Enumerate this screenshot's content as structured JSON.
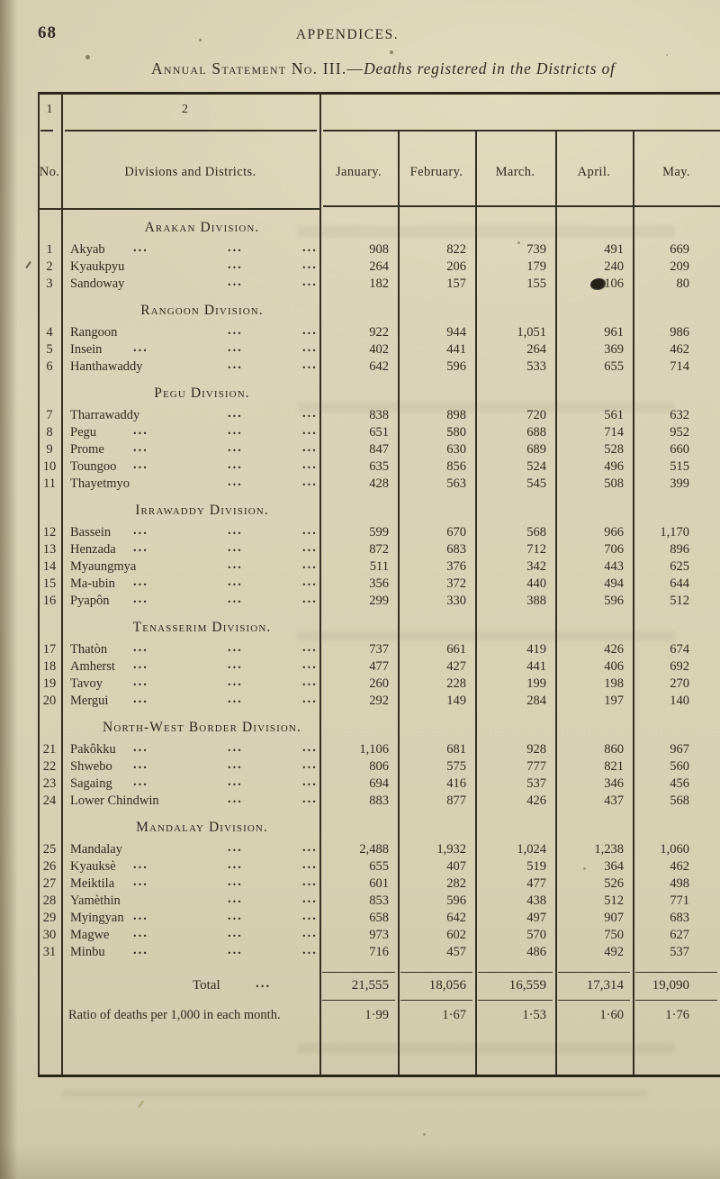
{
  "page": {
    "number": "68",
    "running_head": "APPENDICES."
  },
  "title": {
    "caps": "Annual Statement No. III.—",
    "italic": "Deaths registered in the Districts of"
  },
  "table": {
    "col_numbers": {
      "no": "1",
      "district": "2"
    },
    "headers": {
      "no": "No.",
      "district": "Divisions and Districts.",
      "months": [
        "January.",
        "February.",
        "March.",
        "April.",
        "May."
      ]
    },
    "leader_dots": "...",
    "sections": [
      {
        "division": "Arakan Division.",
        "rows": [
          {
            "no": "1",
            "name": "Akyab",
            "dots": 3,
            "values": [
              "908",
              "822",
              "739",
              "491",
              "669"
            ]
          },
          {
            "no": "2",
            "name": "Kyaukpyu",
            "dots": 2,
            "values": [
              "264",
              "206",
              "179",
              "240",
              "209"
            ]
          },
          {
            "no": "3",
            "name": "Sandoway",
            "dots": 2,
            "values": [
              "182",
              "157",
              "155",
              "106",
              "80"
            ],
            "blot_col": 3
          }
        ]
      },
      {
        "division": "Rangoon Division.",
        "rows": [
          {
            "no": "4",
            "name": "Rangoon",
            "dots": 2,
            "values": [
              "922",
              "944",
              "1,051",
              "961",
              "986"
            ]
          },
          {
            "no": "5",
            "name": "Insein",
            "dots": 3,
            "values": [
              "402",
              "441",
              "264",
              "369",
              "462"
            ]
          },
          {
            "no": "6",
            "name": "Hanthawaddy",
            "dots": 2,
            "values": [
              "642",
              "596",
              "533",
              "655",
              "714"
            ]
          }
        ]
      },
      {
        "division": "Pegu Division.",
        "rows": [
          {
            "no": "7",
            "name": "Tharrawaddy",
            "dots": 2,
            "values": [
              "838",
              "898",
              "720",
              "561",
              "632"
            ]
          },
          {
            "no": "8",
            "name": "Pegu",
            "dots": 3,
            "values": [
              "651",
              "580",
              "688",
              "714",
              "952"
            ]
          },
          {
            "no": "9",
            "name": "Prome",
            "dots": 3,
            "values": [
              "847",
              "630",
              "689",
              "528",
              "660"
            ]
          },
          {
            "no": "10",
            "name": "Toungoo",
            "dots": 3,
            "values": [
              "635",
              "856",
              "524",
              "496",
              "515"
            ]
          },
          {
            "no": "11",
            "name": "Thayetmyo",
            "dots": 2,
            "values": [
              "428",
              "563",
              "545",
              "508",
              "399"
            ]
          }
        ]
      },
      {
        "division": "Irrawaddy Division.",
        "rows": [
          {
            "no": "12",
            "name": "Bassein",
            "dots": 3,
            "values": [
              "599",
              "670",
              "568",
              "966",
              "1,170"
            ]
          },
          {
            "no": "13",
            "name": "Henzada",
            "dots": 3,
            "values": [
              "872",
              "683",
              "712",
              "706",
              "896"
            ]
          },
          {
            "no": "14",
            "name": "Myaungmya",
            "dots": 2,
            "values": [
              "511",
              "376",
              "342",
              "443",
              "625"
            ]
          },
          {
            "no": "15",
            "name": "Ma-ubin",
            "dots": 3,
            "values": [
              "356",
              "372",
              "440",
              "494",
              "644"
            ]
          },
          {
            "no": "16",
            "name": "Pyapôn",
            "dots": 3,
            "values": [
              "299",
              "330",
              "388",
              "596",
              "512"
            ]
          }
        ]
      },
      {
        "division": "Tenasserim Division.",
        "rows": [
          {
            "no": "17",
            "name": "Thatòn",
            "dots": 3,
            "values": [
              "737",
              "661",
              "419",
              "426",
              "674"
            ]
          },
          {
            "no": "18",
            "name": "Amherst",
            "dots": 3,
            "values": [
              "477",
              "427",
              "441",
              "406",
              "692"
            ]
          },
          {
            "no": "19",
            "name": "Tavoy",
            "dots": 3,
            "values": [
              "260",
              "228",
              "199",
              "198",
              "270"
            ]
          },
          {
            "no": "20",
            "name": "Mergui",
            "dots": 3,
            "values": [
              "292",
              "149",
              "284",
              "197",
              "140"
            ]
          }
        ]
      },
      {
        "division": "North-West Border Division.",
        "rows": [
          {
            "no": "21",
            "name": "Pakôkku",
            "dots": 3,
            "values": [
              "1,106",
              "681",
              "928",
              "860",
              "967"
            ]
          },
          {
            "no": "22",
            "name": "Shwebo",
            "dots": 3,
            "values": [
              "806",
              "575",
              "777",
              "821",
              "560"
            ]
          },
          {
            "no": "23",
            "name": "Sagaing",
            "dots": 3,
            "values": [
              "694",
              "416",
              "537",
              "346",
              "456"
            ]
          },
          {
            "no": "24",
            "name": "Lower Chindwin",
            "dots": 2,
            "values": [
              "883",
              "877",
              "426",
              "437",
              "568"
            ]
          }
        ]
      },
      {
        "division": "Mandalay Division.",
        "rows": [
          {
            "no": "25",
            "name": "Mandalay",
            "dots": 2,
            "values": [
              "2,488",
              "1,932",
              "1,024",
              "1,238",
              "1,060"
            ]
          },
          {
            "no": "26",
            "name": "Kyauksè",
            "dots": 3,
            "values": [
              "655",
              "407",
              "519",
              "364",
              "462"
            ]
          },
          {
            "no": "27",
            "name": "Meiktila",
            "dots": 3,
            "values": [
              "601",
              "282",
              "477",
              "526",
              "498"
            ]
          },
          {
            "no": "28",
            "name": "Yamèthin",
            "dots": 2,
            "values": [
              "853",
              "596",
              "438",
              "512",
              "771"
            ]
          },
          {
            "no": "29",
            "name": "Myingyan",
            "dots": 3,
            "values": [
              "658",
              "642",
              "497",
              "907",
              "683"
            ]
          },
          {
            "no": "30",
            "name": "Magwe",
            "dots": 3,
            "values": [
              "973",
              "602",
              "570",
              "750",
              "627"
            ]
          },
          {
            "no": "31",
            "name": "Minbu",
            "dots": 3,
            "values": [
              "716",
              "457",
              "486",
              "492",
              "537"
            ]
          }
        ]
      }
    ],
    "total": {
      "label": "Total",
      "values": [
        "21,555",
        "18,056",
        "16,559",
        "17,314",
        "19,090"
      ]
    },
    "ratio": {
      "label": "Ratio of deaths per 1,000 in each month.",
      "values": [
        "1·99",
        "1·67",
        "1·53",
        "1·60",
        "1·76"
      ]
    }
  }
}
